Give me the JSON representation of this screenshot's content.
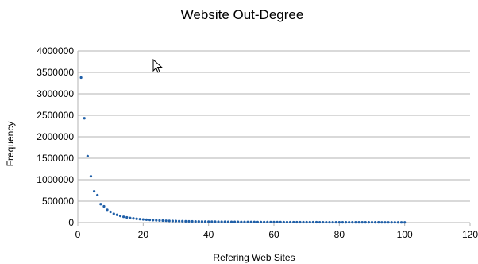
{
  "chart_data": {
    "type": "scatter",
    "title": "Website Out-Degree",
    "xlabel": "Refering Web Sites",
    "ylabel": "Frequency",
    "xlim": [
      0,
      120
    ],
    "ylim": [
      0,
      4000000
    ],
    "x_ticks": [
      0,
      20,
      40,
      60,
      80,
      100,
      120
    ],
    "y_ticks": [
      0,
      500000,
      1000000,
      1500000,
      2000000,
      2500000,
      3000000,
      3500000,
      4000000
    ],
    "grid": "horizontal",
    "legend": "none",
    "series": [
      {
        "color": "#1f5fa8",
        "x": [
          1,
          2,
          3,
          4,
          5,
          6,
          7,
          8,
          9,
          10,
          11,
          12,
          13,
          14,
          15,
          16,
          17,
          18,
          19,
          20,
          21,
          22,
          23,
          24,
          25,
          26,
          27,
          28,
          29,
          30,
          31,
          32,
          33,
          34,
          35,
          36,
          37,
          38,
          39,
          40,
          41,
          42,
          43,
          44,
          45,
          46,
          47,
          48,
          49,
          50,
          51,
          52,
          53,
          54,
          55,
          56,
          57,
          58,
          59,
          60,
          61,
          62,
          63,
          64,
          65,
          66,
          67,
          68,
          69,
          70,
          71,
          72,
          73,
          74,
          75,
          76,
          77,
          78,
          79,
          80,
          81,
          82,
          83,
          84,
          85,
          86,
          87,
          88,
          89,
          90,
          91,
          92,
          93,
          94,
          95,
          96,
          97,
          98,
          99,
          100
        ],
        "y": [
          3380000,
          2430000,
          1550000,
          1080000,
          730000,
          640000,
          430000,
          380000,
          300000,
          250000,
          205000,
          180000,
          155000,
          135000,
          120000,
          108000,
          97000,
          88000,
          80000,
          73000,
          67000,
          62000,
          57000,
          53000,
          49000,
          46000,
          43000,
          40000,
          38000,
          36000,
          34000,
          32000,
          30000,
          29000,
          27500,
          26000,
          25000,
          24000,
          23000,
          22000,
          21000,
          20200,
          19400,
          18700,
          18000,
          17400,
          16800,
          16200,
          15700,
          15200,
          14700,
          14300,
          13900,
          13500,
          13100,
          12800,
          12400,
          12100,
          11800,
          11500,
          11200,
          11000,
          10700,
          10500,
          10200,
          10000,
          9800,
          9600,
          9400,
          9200,
          9000,
          8800,
          8700,
          8500,
          8300,
          8200,
          8000,
          7900,
          7700,
          7600,
          7500,
          7300,
          7200,
          7100,
          7000,
          6900,
          6800,
          6700,
          6600,
          6500,
          6400,
          6300,
          6200,
          6100,
          6000,
          5900,
          5800,
          5700,
          5600,
          5500
        ]
      }
    ]
  }
}
